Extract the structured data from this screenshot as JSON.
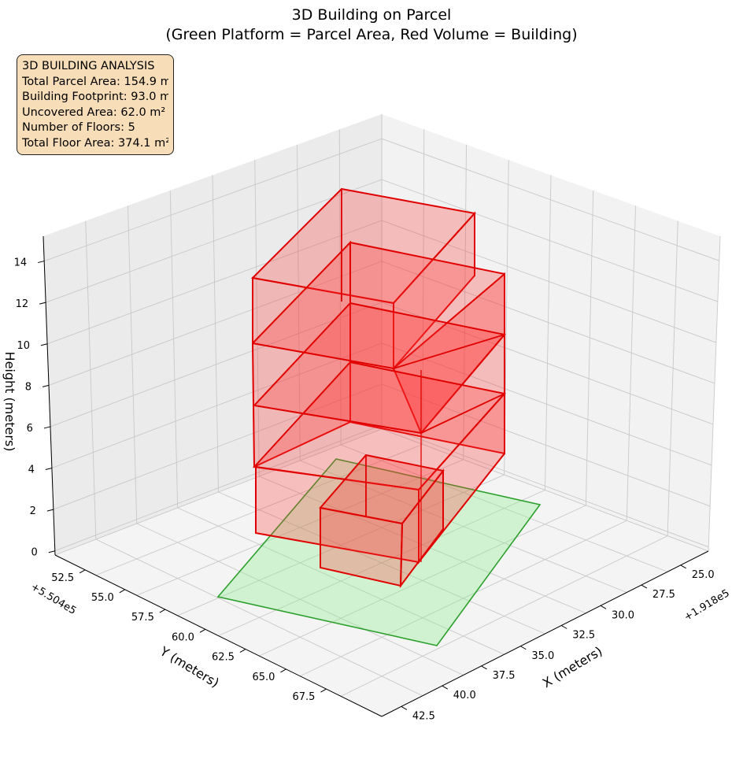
{
  "chart_data": {
    "type": "3d-polygons",
    "title": "3D Building on Parcel",
    "subtitle": "(Green Platform = Parcel Area, Red Volume = Building)",
    "xlabel": "X (meters)",
    "ylabel": "Y (meters)",
    "zlabel": "Height (meters)",
    "x_offset_label": "+1.918e5",
    "y_offset_label": "+5.504e5",
    "x_ticks": [
      "25.0",
      "27.5",
      "30.0",
      "32.5",
      "35.0",
      "37.5",
      "40.0",
      "42.5"
    ],
    "y_ticks": [
      "52.5",
      "55.0",
      "57.5",
      "60.0",
      "62.5",
      "65.0",
      "67.5"
    ],
    "z_ticks": [
      "0",
      "2",
      "4",
      "6",
      "8",
      "10",
      "12",
      "14"
    ],
    "grid": true,
    "parcel": {
      "label": "Parcel Area",
      "color": "#2ca02c",
      "fill": "#90ee90"
    },
    "building": {
      "label": "Building",
      "color": "#e00000",
      "fill": "#ff3333",
      "floors": 5
    }
  },
  "info_box": {
    "heading": "3D BUILDING ANALYSIS",
    "lines": [
      "Total Parcel Area: 154.9 m²",
      "Building Footprint: 93.0 m²",
      "Uncovered Area: 62.0 m²",
      "Number of Floors: 5",
      "Total Floor Area: 374.1 m²"
    ]
  }
}
